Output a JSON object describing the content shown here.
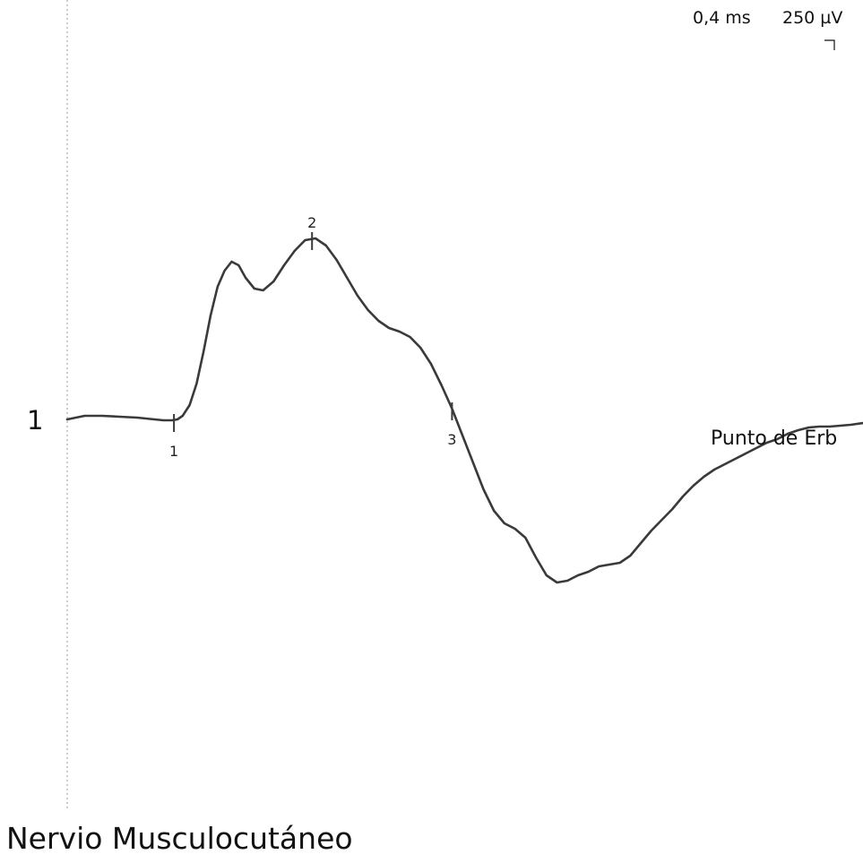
{
  "scale": {
    "time_label": "0,4 ms",
    "amplitude_label": "250 µV"
  },
  "channel": {
    "label": "1"
  },
  "trace": {
    "label": "Punto de Erb"
  },
  "title": "Nervio Musculocutáneo",
  "colors": {
    "trace": "#3a3a3a",
    "baseline": "#9a9a9a",
    "text": "#111111",
    "background": "#ffffff"
  },
  "chart_data": {
    "type": "line",
    "title": "Nervio Musculocutáneo",
    "xlabel": "",
    "ylabel": "",
    "x_scale_per_division": "0,4 ms",
    "y_scale_per_division": "250 µV",
    "xlim": [
      0,
      4.55
    ],
    "ylim": [
      -1.06,
      1.18
    ],
    "grid": false,
    "series": [
      {
        "name": "Punto de Erb",
        "x": [
          0,
          0.1,
          0.2,
          0.3,
          0.4,
          0.5,
          0.55,
          0.6,
          0.63,
          0.66,
          0.7,
          0.74,
          0.78,
          0.82,
          0.86,
          0.9,
          0.94,
          0.98,
          1.02,
          1.07,
          1.12,
          1.18,
          1.24,
          1.3,
          1.36,
          1.42,
          1.48,
          1.54,
          1.6,
          1.66,
          1.72,
          1.78,
          1.84,
          1.9,
          1.96,
          2.02,
          2.08,
          2.14,
          2.2,
          2.26,
          2.32,
          2.38,
          2.44,
          2.5,
          2.56,
          2.62,
          2.68,
          2.74,
          2.8,
          2.86,
          2.92,
          2.98,
          3.04,
          3.1,
          3.16,
          3.22,
          3.28,
          3.34,
          3.4,
          3.46,
          3.52,
          3.58,
          3.64,
          3.7,
          3.76,
          3.82,
          3.88,
          3.94,
          4.0,
          4.06,
          4.12,
          4.18,
          4.24,
          4.3,
          4.36,
          4.42,
          4.48,
          4.55
        ],
        "values": [
          0,
          0.02,
          0.02,
          0.015,
          0.01,
          0.0,
          -0.005,
          -0.005,
          0.0,
          0.02,
          0.08,
          0.2,
          0.38,
          0.58,
          0.74,
          0.83,
          0.88,
          0.86,
          0.79,
          0.73,
          0.72,
          0.77,
          0.86,
          0.94,
          1.0,
          1.01,
          0.97,
          0.89,
          0.79,
          0.69,
          0.61,
          0.55,
          0.51,
          0.49,
          0.46,
          0.4,
          0.31,
          0.19,
          0.06,
          -0.09,
          -0.24,
          -0.39,
          -0.51,
          -0.58,
          -0.61,
          -0.66,
          -0.77,
          -0.87,
          -0.91,
          -0.9,
          -0.87,
          -0.85,
          -0.82,
          -0.81,
          -0.8,
          -0.76,
          -0.69,
          -0.62,
          -0.56,
          -0.5,
          -0.43,
          -0.37,
          -0.32,
          -0.28,
          -0.25,
          -0.22,
          -0.19,
          -0.16,
          -0.13,
          -0.11,
          -0.08,
          -0.06,
          -0.045,
          -0.04,
          -0.04,
          -0.035,
          -0.03,
          -0.02
        ]
      }
    ],
    "markers": [
      {
        "label": "1",
        "x": 0.61,
        "y": -0.005
      },
      {
        "label": "2",
        "x": 1.4,
        "y": 1.01
      },
      {
        "label": "3",
        "x": 2.2,
        "y": 0.06
      }
    ]
  }
}
